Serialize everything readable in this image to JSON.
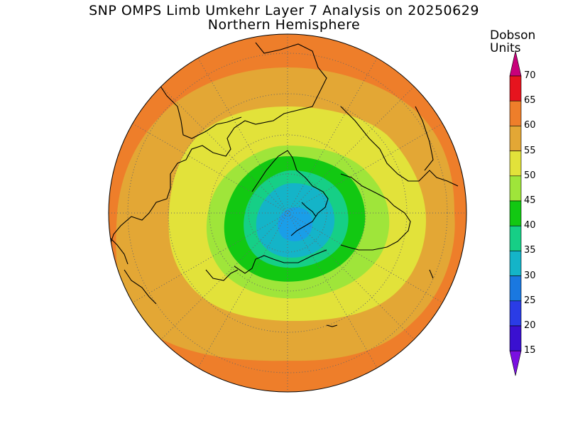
{
  "title": "SNP OMPS Limb Umkehr Layer 7 Analysis on 20250629",
  "subtitle": "Northern Hemisphere",
  "units_line1": "Dobson",
  "units_line2": "Units",
  "chart_data": {
    "type": "filled-contour-map",
    "projection": "north-polar-stereographic",
    "grid": "dotted lat/lon graticule",
    "legend_placement": "right",
    "colorbar": {
      "ticks": [
        "70",
        "65",
        "60",
        "55",
        "50",
        "45",
        "40",
        "35",
        "30",
        "25",
        "20",
        "15"
      ],
      "colors": [
        "#c8007a",
        "#e6141e",
        "#ee7e2a",
        "#e3a735",
        "#e2e23a",
        "#9fe53a",
        "#12c812",
        "#16cf86",
        "#14b4c8",
        "#1a78e0",
        "#2a3ce6",
        "#3a10d0",
        "#7a10e0"
      ]
    },
    "regions": [
      {
        "level": "60-65",
        "color": "#ee7e2a",
        "description": "outer mid-latitude band"
      },
      {
        "level": "55-60",
        "color": "#e3a735"
      },
      {
        "level": "50-55",
        "color": "#e2e23a"
      },
      {
        "level": "45-50",
        "color": "#9fe53a"
      },
      {
        "level": "40-45",
        "color": "#12c812"
      },
      {
        "level": "35-40",
        "color": "#16cf86"
      },
      {
        "level": "30-35",
        "color": "#14b4c8"
      },
      {
        "level": "25-30",
        "color": "#1a9ee8",
        "description": "polar minimum"
      }
    ]
  }
}
